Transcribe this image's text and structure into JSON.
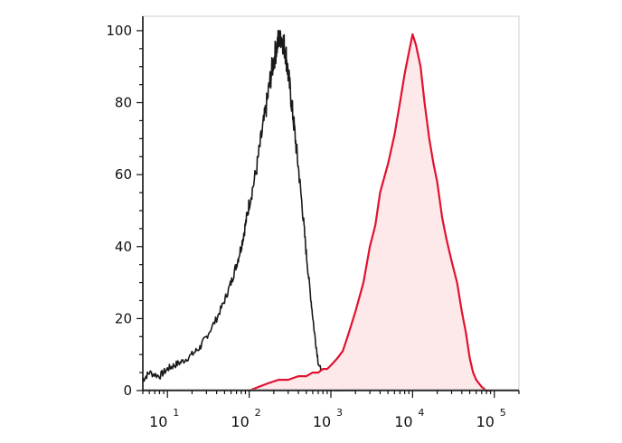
{
  "chart_data": {
    "type": "histogram",
    "x_scale": "log",
    "xlim": [
      5,
      200000
    ],
    "ylim": [
      0,
      104
    ],
    "y_ticks": [
      {
        "value": 0,
        "label": "0"
      },
      {
        "value": 20,
        "label": "20"
      },
      {
        "value": 40,
        "label": "40"
      },
      {
        "value": 60,
        "label": "60"
      },
      {
        "value": 80,
        "label": "80"
      },
      {
        "value": 100,
        "label": "100"
      }
    ],
    "x_ticks": [
      {
        "value": 10,
        "base": "10",
        "exp": "1"
      },
      {
        "value": 100,
        "base": "10",
        "exp": "2"
      },
      {
        "value": 1000,
        "base": "10",
        "exp": "3"
      },
      {
        "value": 10000,
        "base": "10",
        "exp": "4"
      },
      {
        "value": 100000,
        "base": "10",
        "exp": "5"
      }
    ],
    "grid": false,
    "legend": "none",
    "series": [
      {
        "id": "control",
        "color": "#1a1a1a",
        "fill": "none",
        "x": [
          5,
          6,
          8,
          10,
          12,
          15,
          20,
          25,
          30,
          40,
          50,
          60,
          70,
          80,
          90,
          100,
          120,
          140,
          160,
          180,
          200,
          220,
          240,
          260,
          280,
          300,
          330,
          360,
          400,
          450,
          500,
          560,
          630,
          700,
          800,
          900,
          1000,
          1200,
          1500,
          2000
        ],
        "y": [
          3,
          5,
          4,
          6,
          7,
          8,
          10,
          12,
          15,
          20,
          25,
          30,
          35,
          40,
          46,
          52,
          60,
          70,
          78,
          86,
          92,
          96,
          99,
          97,
          94,
          88,
          80,
          72,
          62,
          50,
          38,
          27,
          16,
          8,
          3,
          1,
          0.5,
          0,
          0,
          0
        ]
      },
      {
        "id": "sample",
        "color": "#e0122f",
        "fill": "#fde8ea",
        "x": [
          100,
          130,
          170,
          230,
          300,
          400,
          500,
          600,
          700,
          800,
          900,
          1000,
          1200,
          1400,
          1600,
          2000,
          2500,
          3000,
          3500,
          4000,
          5000,
          6000,
          7000,
          8000,
          9000,
          10000,
          11000,
          12500,
          14000,
          16000,
          18000,
          20000,
          23000,
          26000,
          30000,
          35000,
          40000,
          45000,
          50000,
          55000,
          60000,
          70000,
          80000,
          90000
        ],
        "y": [
          0,
          1,
          2,
          3,
          3,
          4,
          4,
          5,
          5,
          6,
          6,
          7,
          9,
          11,
          15,
          22,
          30,
          40,
          46,
          55,
          63,
          71,
          80,
          88,
          94,
          99,
          96,
          90,
          80,
          70,
          63,
          58,
          48,
          42,
          36,
          30,
          22,
          16,
          9,
          5,
          3,
          1,
          0,
          0
        ]
      }
    ]
  }
}
